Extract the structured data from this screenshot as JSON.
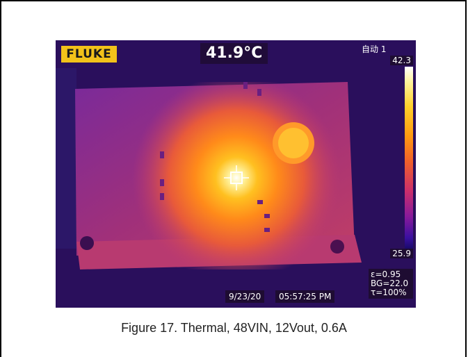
{
  "thermal": {
    "brand": "FLUKE",
    "center_temp": "41.9°C",
    "mode": "自动 1",
    "scale_max": "42.3",
    "scale_min": "25.9",
    "emissivity": "ε=0.95",
    "background": "BG=22.0",
    "transmission": "τ=100%",
    "date": "9/23/20",
    "time": "05:57:25 PM"
  },
  "caption": "Figure 17. Thermal, 48VIN, 12Vout, 0.6A"
}
